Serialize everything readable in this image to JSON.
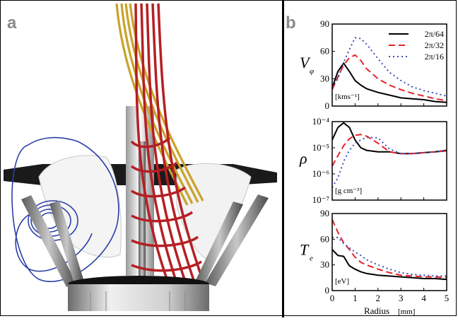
{
  "panel_a": {
    "label": "a"
  },
  "panel_b": {
    "label": "b"
  },
  "legend": [
    {
      "name": "2π/64",
      "color": "#000000",
      "dash": "solid"
    },
    {
      "name": "2π/32",
      "color": "#e8212a",
      "dash": "dashed"
    },
    {
      "name": "2π/16",
      "color": "#3a4fb8",
      "dash": "dotted"
    }
  ],
  "chart_data": [
    {
      "type": "line",
      "ylabel": "V",
      "ylabel_sub": "φ",
      "unit": "[kms⁻¹]",
      "ylim": [
        0,
        90
      ],
      "yticks": [
        "0",
        "30",
        "60",
        "90"
      ],
      "ytick_values": [
        0,
        30,
        60,
        90
      ],
      "yscale": "linear",
      "x": [
        0,
        0.25,
        0.5,
        0.75,
        1.0,
        1.25,
        1.5,
        2.0,
        2.5,
        3.0,
        3.5,
        4.0,
        4.5,
        5.0
      ],
      "series": [
        {
          "name": "2π/64",
          "values": [
            20,
            38,
            47,
            38,
            28,
            23,
            19,
            15,
            12,
            9,
            8,
            7,
            5,
            4
          ]
        },
        {
          "name": "2π/32",
          "values": [
            18,
            32,
            45,
            53,
            56,
            50,
            41,
            30,
            23,
            18,
            14,
            11,
            8,
            6
          ]
        },
        {
          "name": "2π/16",
          "values": [
            20,
            30,
            48,
            62,
            75,
            74,
            68,
            52,
            37,
            28,
            21,
            17,
            14,
            11
          ]
        }
      ]
    },
    {
      "type": "line",
      "ylabel": "ρ",
      "unit": "[g cm⁻³]",
      "ylim": [
        1e-07,
        0.0001
      ],
      "yscale": "log",
      "yticks": [
        "10⁻⁷",
        "10⁻⁶",
        "10⁻⁵",
        "10⁻⁴"
      ],
      "ytick_values": [
        1e-07,
        1e-06,
        1e-05,
        0.0001
      ],
      "x": [
        0,
        0.25,
        0.5,
        0.75,
        1.0,
        1.25,
        1.5,
        2.0,
        2.5,
        3.0,
        3.5,
        4.0,
        4.5,
        5.0
      ],
      "series": [
        {
          "name": "2π/64",
          "values": [
            2e-05,
            6e-05,
            9e-05,
            6e-05,
            2e-05,
            1e-05,
            8e-06,
            7e-06,
            7e-06,
            6e-06,
            6e-06,
            6.5e-06,
            7e-06,
            8e-06
          ]
        },
        {
          "name": "2π/32",
          "values": [
            2e-06,
            5e-06,
            1.2e-05,
            2.2e-05,
            3e-05,
            3.2e-05,
            2.8e-05,
            1.5e-05,
            7e-06,
            6e-06,
            6e-06,
            6.5e-06,
            7e-06,
            7.5e-06
          ]
        },
        {
          "name": "2π/16",
          "values": [
            3e-07,
            7e-07,
            3e-06,
            8e-06,
            1.5e-05,
            2e-05,
            2.5e-05,
            2.4e-05,
            9e-06,
            6e-06,
            6e-06,
            6.5e-06,
            7e-06,
            7.5e-06
          ]
        }
      ]
    },
    {
      "type": "line",
      "ylabel": "T",
      "ylabel_sub": "e",
      "unit": "[eV]",
      "ylim": [
        0,
        90
      ],
      "yticks": [
        "0",
        "30",
        "60",
        "90"
      ],
      "ytick_values": [
        0,
        30,
        60,
        90
      ],
      "yscale": "linear",
      "xlabel": "Radius",
      "xunit": "[mm]",
      "xlim": [
        0,
        5
      ],
      "xticks": [
        "0",
        "1",
        "2",
        "3",
        "4",
        "5"
      ],
      "x": [
        0,
        0.25,
        0.5,
        0.75,
        1.0,
        1.25,
        1.5,
        2.0,
        2.5,
        3.0,
        3.5,
        4.0,
        4.5,
        5.0
      ],
      "series": [
        {
          "name": "2π/64",
          "values": [
            48,
            41,
            40,
            29,
            25,
            22,
            20,
            18,
            17,
            16,
            15,
            14,
            14,
            13
          ]
        },
        {
          "name": "2π/32",
          "values": [
            83,
            68,
            56,
            48,
            39,
            33,
            30,
            25,
            21,
            18,
            17,
            16,
            16,
            15
          ]
        },
        {
          "name": "2π/16",
          "values": [
            62,
            62,
            55,
            50,
            45,
            41,
            36,
            30,
            25,
            21,
            19,
            18,
            17,
            17
          ]
        }
      ]
    }
  ]
}
